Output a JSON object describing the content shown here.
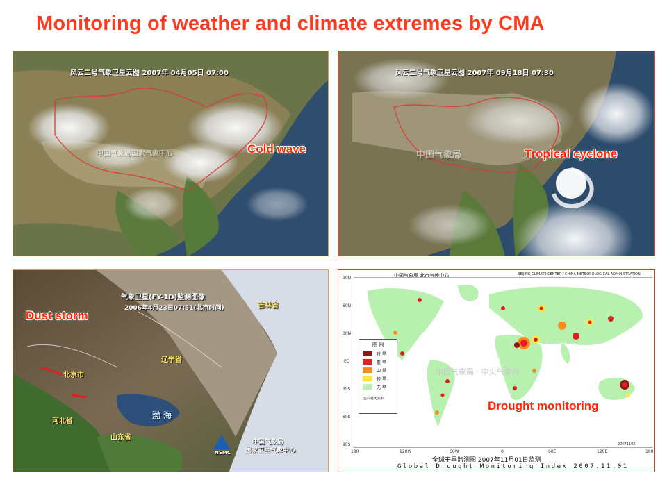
{
  "slide": {
    "title": "Monitoring of weather and climate extremes by CMA"
  },
  "panels": {
    "cold_wave": {
      "header": "风云二号气象卫星云图 2007年 04月05日 07:00",
      "watermark": "中国气象局国家气象中心",
      "label": "Cold wave"
    },
    "tropical_cyclone": {
      "header": "风云二号气象卫星云图 2007年 09月18日 07:30",
      "watermark": "中国气象局",
      "label": "Tropical cyclone"
    },
    "dust_storm": {
      "header_line1": "气象卫星(FY-1D)监测图像",
      "header_line2": "2006年4月23日07:51(北京时间)",
      "place_jilin": "吉林省",
      "place_liaoning": "辽宁省",
      "place_beijing": "北京市",
      "place_bohai": "渤 海",
      "place_hebei": "河北省",
      "place_shandong": "山东省",
      "agency_line1": "中国气象局",
      "agency_line2": "国家卫星气象中心",
      "nsmc": "NSMC",
      "label": "Dust storm"
    },
    "drought": {
      "header_left": "中国气象局 北京气候中心",
      "header_right": "BEIJING CLIMATE CENTER / CHINA METEOROLOGICAL ADMINISTRATION",
      "watermark": "中国气象局 · 中央气象台",
      "label": "Drought monitoring",
      "footer_cn": "全球干旱监测图 2007年11月01日监测",
      "footer_en": "Global Drought Monitoring Index 2007.11.01",
      "code": "20071102",
      "lat_labels": [
        "90N",
        "60N",
        "30N",
        "EQ",
        "30S",
        "60S",
        "90S"
      ],
      "lon_labels": [
        "180",
        "120W",
        "60W",
        "0",
        "60E",
        "120E",
        "180"
      ],
      "legend": {
        "title": "图  例",
        "items": [
          {
            "label": "特 旱",
            "color": "#8b1a1a"
          },
          {
            "label": "重 旱",
            "color": "#e02020"
          },
          {
            "label": "中 旱",
            "color": "#ff8c1a"
          },
          {
            "label": "轻 旱",
            "color": "#ffe640"
          },
          {
            "label": "无 旱",
            "color": "#b8f0b0"
          }
        ],
        "note": "空白处无资料"
      }
    }
  }
}
